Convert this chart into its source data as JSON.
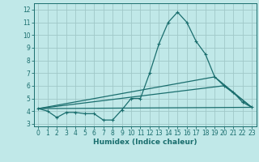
{
  "title": "",
  "xlabel": "Humidex (Indice chaleur)",
  "background_color": "#c0e8e8",
  "grid_color": "#a0c8c8",
  "line_color": "#1a6e6e",
  "xlim": [
    -0.5,
    23.5
  ],
  "ylim": [
    2.8,
    12.5
  ],
  "yticks": [
    3,
    4,
    5,
    6,
    7,
    8,
    9,
    10,
    11,
    12
  ],
  "xticks": [
    0,
    1,
    2,
    3,
    4,
    5,
    6,
    7,
    8,
    9,
    10,
    11,
    12,
    13,
    14,
    15,
    16,
    17,
    18,
    19,
    20,
    21,
    22,
    23
  ],
  "series1_x": [
    0,
    1,
    2,
    3,
    4,
    5,
    6,
    7,
    8,
    9,
    10,
    11,
    12,
    13,
    14,
    15,
    16,
    17,
    18,
    19,
    20,
    21,
    22,
    23
  ],
  "series1_y": [
    4.2,
    4.0,
    3.5,
    3.9,
    3.9,
    3.8,
    3.8,
    3.3,
    3.3,
    4.1,
    5.0,
    5.0,
    7.0,
    9.3,
    11.0,
    11.8,
    11.0,
    9.5,
    8.5,
    6.7,
    6.0,
    5.5,
    4.7,
    4.3
  ],
  "series2_x": [
    0,
    23
  ],
  "series2_y": [
    4.2,
    4.3
  ],
  "series3_x": [
    0,
    20,
    23
  ],
  "series3_y": [
    4.2,
    6.0,
    4.3
  ],
  "series4_x": [
    0,
    19,
    23
  ],
  "series4_y": [
    4.2,
    6.7,
    4.3
  ]
}
